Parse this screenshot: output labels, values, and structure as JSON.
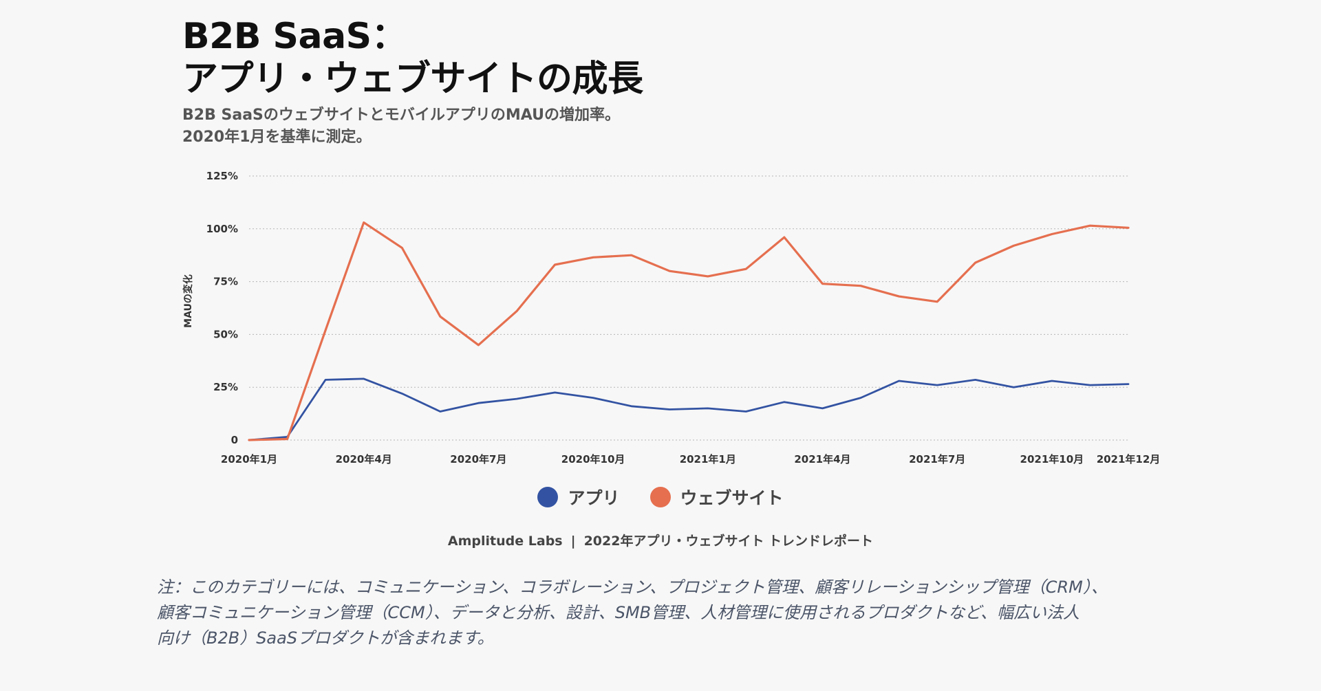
{
  "title_lines": [
    "B2B SaaS：",
    "アプリ・ウェブサイトの成長"
  ],
  "subtitle_lines": [
    "B2B SaaSのウェブサイトとモバイルアプリのMAUの増加率。",
    "2020年1月を基準に測定。"
  ],
  "source": {
    "org": "Amplitude Labs",
    "sep": "|",
    "report": "2022年アプリ・ウェブサイト トレンドレポート"
  },
  "note_lines": [
    "注：このカテゴリーには、コミュニケーション、コラボレーション、プロジェクト管理、顧客リレーションシップ管理（CRM）、",
    "顧客コミュニケーション管理（CCM）、データと分析、設計、SMB管理、人材管理に使用されるプロダクトなど、幅広い法人",
    "向け（B2B）SaaSプロダクトが含まれます。"
  ],
  "chart_data": {
    "type": "line",
    "title": "B2B SaaS：アプリ・ウェブサイトの成長",
    "xlabel": "",
    "ylabel": "MAUの変化",
    "ylim": [
      0,
      125
    ],
    "y_ticks": [
      0,
      25,
      50,
      75,
      100,
      125
    ],
    "y_tick_labels": [
      "0",
      "25%",
      "50%",
      "75%",
      "100%",
      "125%"
    ],
    "x": [
      "2020-01",
      "2020-02",
      "2020-03",
      "2020-04",
      "2020-05",
      "2020-06",
      "2020-07",
      "2020-08",
      "2020-09",
      "2020-10",
      "2020-11",
      "2020-12",
      "2021-01",
      "2021-02",
      "2021-03",
      "2021-04",
      "2021-05",
      "2021-06",
      "2021-07",
      "2021-08",
      "2021-09",
      "2021-10",
      "2021-11",
      "2021-12"
    ],
    "x_tick_labels": [
      {
        "x": "2020-01",
        "label": "2020年1月"
      },
      {
        "x": "2020-04",
        "label": "2020年4月"
      },
      {
        "x": "2020-07",
        "label": "2020年7月"
      },
      {
        "x": "2020-10",
        "label": "2020年10月"
      },
      {
        "x": "2021-01",
        "label": "2021年1月"
      },
      {
        "x": "2021-04",
        "label": "2021年4月"
      },
      {
        "x": "2021-07",
        "label": "2021年7月"
      },
      {
        "x": "2021-10",
        "label": "2021年10月"
      },
      {
        "x": "2021-12",
        "label": "2021年12月"
      }
    ],
    "series": [
      {
        "name": "アプリ",
        "color": "#3353a2",
        "values": [
          0,
          1.5,
          28.5,
          29,
          22,
          13.5,
          17.5,
          19.5,
          22.5,
          20,
          16,
          14.5,
          15,
          13.5,
          18,
          15,
          20,
          28,
          26,
          28.5,
          25,
          28,
          26,
          26.5
        ]
      },
      {
        "name": "ウェブサイト",
        "color": "#e56f4f",
        "values": [
          0,
          0.5,
          52,
          103,
          91,
          58.5,
          45,
          61,
          83,
          86.5,
          87.5,
          80,
          77.5,
          81,
          96,
          74,
          73,
          68,
          65.5,
          84,
          92,
          97.5,
          101.5,
          100.5
        ]
      }
    ],
    "grid": "horizontal-dotted",
    "legend_position": "bottom-center"
  }
}
